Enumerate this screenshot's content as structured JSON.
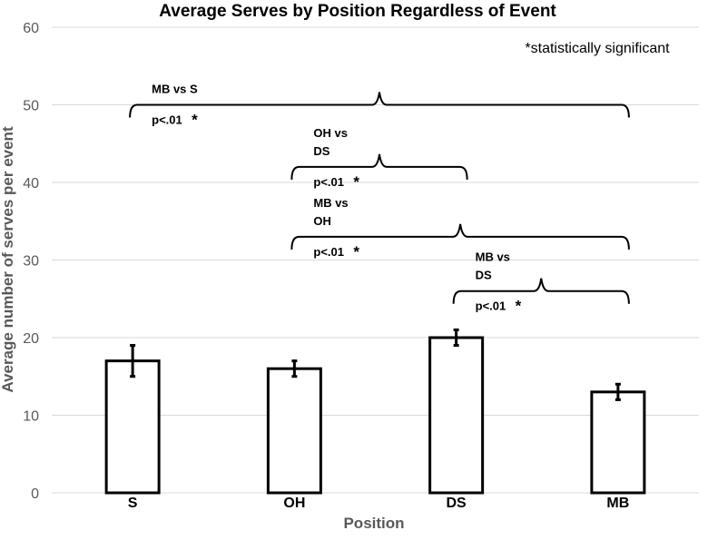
{
  "chart_data": {
    "type": "bar",
    "title": "Average Serves by Position Regardless of Event",
    "xlabel": "Position",
    "ylabel": "Average number of serves per event",
    "categories": [
      "S",
      "OH",
      "DS",
      "MB"
    ],
    "values": [
      17,
      16,
      20,
      13
    ],
    "errors": [
      2,
      1,
      1,
      1
    ],
    "ylim": [
      0,
      60
    ],
    "yticks": [
      0,
      10,
      20,
      30,
      40,
      50,
      60
    ],
    "grid": true,
    "note": "*statistically significant",
    "comparisons": [
      {
        "from": "S",
        "to": "MB",
        "level": 50,
        "label_lines": [
          "MB vs S"
        ],
        "p": "p<.01",
        "star": "*"
      },
      {
        "from": "OH",
        "to": "DS",
        "level": 42,
        "label_lines": [
          "OH vs",
          "DS"
        ],
        "p": "p<.01",
        "star": "*"
      },
      {
        "from": "OH",
        "to": "MB",
        "level": 33,
        "label_lines": [
          "MB vs",
          "OH"
        ],
        "p": "p<.01",
        "star": "*"
      },
      {
        "from": "DS",
        "to": "MB",
        "level": 26,
        "label_lines": [
          "MB vs",
          "DS"
        ],
        "p": "p<.01",
        "star": "*"
      }
    ]
  }
}
